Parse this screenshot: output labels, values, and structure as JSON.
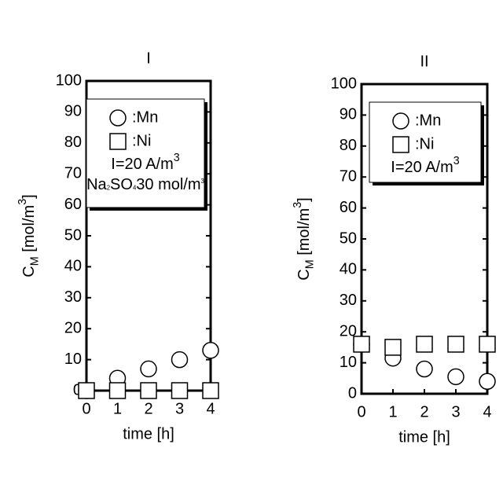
{
  "chart_data": [
    {
      "type": "scatter",
      "title": "I",
      "x_label": "time [h]",
      "y_label": [
        "C",
        "M",
        " [mol/m",
        "3",
        "]"
      ],
      "annotations": [
        [
          "I=20 A/m",
          "3"
        ],
        [
          "Na",
          "2",
          "SO",
          "4",
          "30 mol/m",
          "3"
        ]
      ],
      "xlim": [
        0,
        4
      ],
      "xticks": [
        0,
        1,
        2,
        3,
        4
      ],
      "ylim": [
        0,
        100
      ],
      "yticks": [
        0,
        10,
        20,
        30,
        40,
        50,
        60,
        70,
        80,
        90,
        100
      ],
      "series": [
        {
          "name": ":Mn",
          "marker": "circle",
          "x": [
            0,
            1,
            2,
            3,
            4
          ],
          "values": [
            0,
            4,
            7,
            10,
            13
          ]
        },
        {
          "name": ":Ni",
          "marker": "square",
          "x": [
            0,
            1,
            2,
            3,
            4
          ],
          "values": [
            0,
            0,
            0,
            0,
            0
          ]
        }
      ]
    },
    {
      "type": "scatter",
      "title": "II",
      "x_label": "time [h]",
      "y_label": [
        "C",
        "M",
        " [mol/m",
        "3",
        "]"
      ],
      "annotations": [
        [
          "I=20 A/m",
          "3"
        ]
      ],
      "xlim": [
        0,
        4
      ],
      "xticks": [
        0,
        1,
        2,
        3,
        4
      ],
      "ylim": [
        0,
        100
      ],
      "yticks": [
        0,
        10,
        20,
        30,
        40,
        50,
        60,
        70,
        80,
        90,
        100
      ],
      "series": [
        {
          "name": ":Mn",
          "marker": "circle",
          "x": [
            0,
            1,
            2,
            3,
            4
          ],
          "values": [
            16,
            11.5,
            8,
            5.5,
            4
          ]
        },
        {
          "name": ":Ni",
          "marker": "square",
          "x": [
            0,
            1,
            2,
            3,
            4
          ],
          "values": [
            16,
            15,
            16,
            16,
            16
          ]
        }
      ]
    }
  ]
}
